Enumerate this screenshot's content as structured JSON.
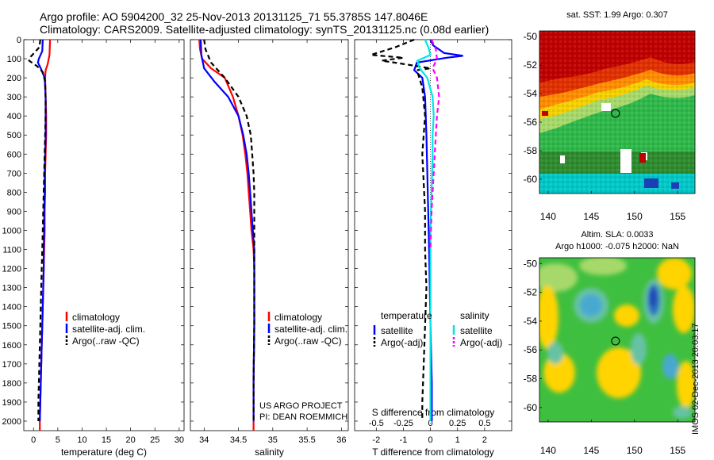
{
  "header": {
    "line1": "Argo profile: AO 5904200_32 25-Nov-2013 20131125_71 55.3785S 147.8046E",
    "line2": "Climatology: CARS2009. Satellite-adjusted climatology: synTS_20131125.nc (0.08d earlier)"
  },
  "credit": {
    "line1": "US ARGO PROJECT",
    "line2": "PI: DEAN ROEMMICH"
  },
  "side_label": "IMOS 02-Dec-2013 20:03:17",
  "colors": {
    "climatology": "#ff0000",
    "satellite": "#0000ff",
    "argo": "#000000",
    "sal_satellite": "#00e5e5",
    "sal_argo": "#ff00ff"
  },
  "chart_data": [
    {
      "type": "line",
      "id": "temperature",
      "xlabel": "temperature (deg C)",
      "ylabel": "",
      "xlim": [
        -2,
        31
      ],
      "ylim": [
        2050,
        0
      ],
      "xticks": [
        0,
        5,
        10,
        15,
        20,
        25,
        30
      ],
      "yticks": [
        0,
        100,
        200,
        300,
        400,
        500,
        600,
        700,
        800,
        900,
        1000,
        1100,
        1200,
        1300,
        1400,
        1500,
        1600,
        1700,
        1800,
        1900,
        2000
      ],
      "legend": {
        "placement": "lower-center",
        "items": [
          "climatology",
          "satellite-adj. clim.",
          "Argo(..raw -QC)"
        ]
      },
      "series": [
        {
          "name": "climatology",
          "color": "#ff0000",
          "dash": "",
          "points": [
            [
              3.4,
              0
            ],
            [
              3.3,
              80
            ],
            [
              2.9,
              130
            ],
            [
              2.5,
              160
            ],
            [
              2.4,
              200
            ],
            [
              2.5,
              300
            ],
            [
              2.6,
              400
            ],
            [
              2.6,
              500
            ],
            [
              2.5,
              600
            ],
            [
              2.4,
              700
            ],
            [
              2.4,
              800
            ],
            [
              2.3,
              900
            ],
            [
              2.3,
              1000
            ],
            [
              2.2,
              1100
            ],
            [
              2.1,
              1200
            ],
            [
              2.0,
              1300
            ],
            [
              1.9,
              1400
            ],
            [
              1.8,
              1500
            ],
            [
              1.7,
              1600
            ],
            [
              1.6,
              1700
            ],
            [
              1.5,
              1800
            ],
            [
              1.4,
              1900
            ],
            [
              1.3,
              2000
            ],
            [
              1.3,
              2050
            ]
          ]
        },
        {
          "name": "satellite-adj. clim.",
          "color": "#0000ff",
          "dash": "",
          "points": [
            [
              1.9,
              0
            ],
            [
              1.8,
              60
            ],
            [
              1.1,
              100
            ],
            [
              0.9,
              120
            ],
            [
              1.5,
              150
            ],
            [
              2.3,
              200
            ],
            [
              2.5,
              300
            ],
            [
              2.5,
              400
            ],
            [
              2.5,
              500
            ],
            [
              2.4,
              600
            ],
            [
              2.3,
              700
            ],
            [
              2.3,
              800
            ],
            [
              2.2,
              900
            ],
            [
              2.2,
              1000
            ],
            [
              2.1,
              1100
            ],
            [
              2.1,
              1200
            ],
            [
              2.0,
              1300
            ],
            [
              1.9,
              1400
            ],
            [
              1.8,
              1500
            ],
            [
              1.7,
              1600
            ],
            [
              1.6,
              1700
            ],
            [
              1.5,
              1800
            ],
            [
              1.4,
              1900
            ],
            [
              1.3,
              2000
            ]
          ]
        },
        {
          "name": "Argo(..raw -QC)",
          "color": "#000000",
          "dash": "6,4",
          "points": [
            [
              1.4,
              0
            ],
            [
              1.2,
              40
            ],
            [
              -0.6,
              90
            ],
            [
              -0.9,
              110
            ],
            [
              0.8,
              140
            ],
            [
              1.9,
              170
            ],
            [
              2.4,
              220
            ],
            [
              2.5,
              300
            ],
            [
              2.5,
              400
            ],
            [
              2.4,
              500
            ],
            [
              2.3,
              600
            ],
            [
              2.2,
              700
            ],
            [
              2.1,
              800
            ],
            [
              2.0,
              900
            ],
            [
              1.9,
              1000
            ],
            [
              1.8,
              1100
            ],
            [
              1.7,
              1200
            ],
            [
              1.6,
              1300
            ],
            [
              1.5,
              1400
            ],
            [
              1.4,
              1500
            ],
            [
              1.3,
              1600
            ],
            [
              1.2,
              1700
            ],
            [
              1.1,
              1800
            ],
            [
              1.0,
              1900
            ],
            [
              1.0,
              2000
            ]
          ]
        }
      ]
    },
    {
      "type": "line",
      "id": "salinity",
      "xlabel": "salinity",
      "xlim": [
        33.8,
        36.1
      ],
      "ylim": [
        2050,
        0
      ],
      "xticks": [
        34,
        34.5,
        35,
        35.5,
        36
      ],
      "xticklabels": [
        "34",
        "34.5",
        "35",
        "35.5",
        "36"
      ],
      "legend": {
        "placement": "lower-right",
        "items": [
          "climatology",
          "satellite-adj. clim.",
          "Argo(..raw -QC)"
        ]
      },
      "series": [
        {
          "name": "climatology",
          "color": "#ff0000",
          "dash": "",
          "points": [
            [
              33.93,
              0
            ],
            [
              33.94,
              50
            ],
            [
              33.97,
              100
            ],
            [
              34.1,
              150
            ],
            [
              34.3,
              200
            ],
            [
              34.42,
              300
            ],
            [
              34.5,
              400
            ],
            [
              34.56,
              500
            ],
            [
              34.6,
              600
            ],
            [
              34.63,
              700
            ],
            [
              34.65,
              800
            ],
            [
              34.67,
              900
            ],
            [
              34.69,
              1000
            ],
            [
              34.72,
              1100
            ],
            [
              34.73,
              1200
            ],
            [
              34.73,
              1500
            ],
            [
              34.72,
              1800
            ],
            [
              34.72,
              2050
            ]
          ]
        },
        {
          "name": "satellite-adj. clim.",
          "color": "#0000ff",
          "dash": "",
          "points": [
            [
              33.95,
              0
            ],
            [
              33.96,
              80
            ],
            [
              34.0,
              150
            ],
            [
              34.15,
              220
            ],
            [
              34.35,
              300
            ],
            [
              34.5,
              400
            ],
            [
              34.57,
              500
            ],
            [
              34.62,
              600
            ],
            [
              34.65,
              700
            ],
            [
              34.67,
              800
            ],
            [
              34.69,
              900
            ],
            [
              34.71,
              1000
            ],
            [
              34.73,
              1100
            ],
            [
              34.73,
              1200
            ],
            [
              34.73,
              1500
            ],
            [
              34.72,
              1800
            ],
            [
              34.72,
              2000
            ]
          ]
        },
        {
          "name": "Argo(..raw -QC)",
          "color": "#000000",
          "dash": "6,4",
          "points": [
            [
              34.0,
              0
            ],
            [
              34.02,
              50
            ],
            [
              34.1,
              120
            ],
            [
              34.3,
              200
            ],
            [
              34.5,
              300
            ],
            [
              34.62,
              400
            ],
            [
              34.68,
              500
            ],
            [
              34.7,
              600
            ],
            [
              34.72,
              700
            ],
            [
              34.73,
              800
            ],
            [
              34.73,
              900
            ],
            [
              34.73,
              1000
            ],
            [
              34.73,
              1500
            ],
            [
              34.72,
              1800
            ],
            [
              34.72,
              2000
            ]
          ]
        }
      ]
    },
    {
      "type": "line",
      "id": "differences",
      "xlabel": "T difference from climatology",
      "xlabel2": "S difference from climatology",
      "xlim": [
        -2.8,
        3.0
      ],
      "ylim": [
        2050,
        0
      ],
      "xticks": [
        -2,
        -1,
        0,
        1,
        2
      ],
      "xticks_top": [
        -0.5,
        -0.25,
        0,
        0.25,
        0.5
      ],
      "xticklabels_top": [
        "-0.5",
        "-0.25",
        "0",
        "0.25",
        "0.5"
      ],
      "legend": {
        "placement": "lower-center",
        "groups": [
          {
            "title": "temperature",
            "items": [
              "satellite",
              "Argo(-adj)"
            ]
          },
          {
            "title": "salinity",
            "items": [
              "satellite",
              "Argo(-adj)"
            ]
          }
        ]
      },
      "series": [
        {
          "name": "temperature satellite",
          "color": "#0000ff",
          "dash": "",
          "points": [
            [
              0.0,
              0
            ],
            [
              0.1,
              30
            ],
            [
              0.5,
              70
            ],
            [
              1.2,
              85
            ],
            [
              0.6,
              95
            ],
            [
              -0.5,
              120
            ],
            [
              -0.6,
              160
            ],
            [
              -0.3,
              200
            ],
            [
              -0.2,
              300
            ],
            [
              -0.15,
              500
            ],
            [
              -0.1,
              800
            ],
            [
              -0.05,
              1100
            ],
            [
              0.0,
              1500
            ],
            [
              0.05,
              1800
            ],
            [
              0.05,
              2000
            ]
          ]
        },
        {
          "name": "temperature Argo(-adj)",
          "color": "#000000",
          "dash": "6,4",
          "points": [
            [
              -0.6,
              0
            ],
            [
              -1.3,
              40
            ],
            [
              -2.2,
              80
            ],
            [
              -1.0,
              95
            ],
            [
              -1.8,
              110
            ],
            [
              -1.1,
              125
            ],
            [
              0.0,
              150
            ],
            [
              -0.5,
              160
            ],
            [
              -0.3,
              250
            ],
            [
              -0.2,
              400
            ],
            [
              -0.3,
              600
            ],
            [
              -0.2,
              900
            ],
            [
              -0.2,
              1100
            ],
            [
              -0.15,
              1300
            ],
            [
              -0.2,
              1500
            ],
            [
              -0.25,
              1700
            ],
            [
              -0.3,
              1900
            ],
            [
              -0.3,
              2000
            ]
          ]
        },
        {
          "name": "salinity satellite",
          "color": "#00e5e5",
          "dash": "",
          "points": [
            [
              -0.05,
              0
            ],
            [
              -0.02,
              40
            ],
            [
              0.0,
              80
            ],
            [
              -0.12,
              110
            ],
            [
              -0.1,
              150
            ],
            [
              -0.03,
              200
            ],
            [
              0.02,
              300
            ],
            [
              0.03,
              400
            ],
            [
              0.02,
              500
            ],
            [
              0.02,
              600
            ],
            [
              0.01,
              800
            ],
            [
              0.0,
              1000
            ],
            [
              0.0,
              1200
            ],
            [
              0.0,
              1500
            ],
            [
              0.0,
              2000
            ]
          ]
        },
        {
          "name": "salinity Argo(-adj)",
          "color": "#ff00ff",
          "dash": "6,4",
          "points": [
            [
              0.01,
              0
            ],
            [
              0.05,
              50
            ],
            [
              0.06,
              100
            ],
            [
              0.02,
              150
            ],
            [
              0.06,
              200
            ],
            [
              0.08,
              300
            ],
            [
              0.06,
              400
            ],
            [
              0.05,
              500
            ],
            [
              0.04,
              600
            ],
            [
              0.03,
              700
            ],
            [
              0.02,
              800
            ],
            [
              0.01,
              900
            ],
            [
              0.005,
              1000
            ],
            [
              0.0,
              1100
            ]
          ]
        }
      ]
    },
    {
      "type": "heatmap",
      "id": "sst_map",
      "title": "sat. SST: 1.99 Argo: 0.307",
      "xlim": [
        139,
        157
      ],
      "ylim": [
        -61,
        -49.6
      ],
      "xticks": [
        140,
        145,
        150,
        155
      ],
      "yticks": [
        -50,
        -52,
        -54,
        -56,
        -58,
        -60
      ],
      "argo_position": [
        147.8,
        -55.38
      ]
    },
    {
      "type": "heatmap",
      "id": "sla_map",
      "title": "Altim. SLA: 0.0033",
      "subtitle": "Argo h1000: -0.075 h2000: NaN",
      "xlim": [
        139,
        157
      ],
      "ylim": [
        -61,
        -49.6
      ],
      "xticks": [
        140,
        145,
        150,
        155
      ],
      "yticks": [
        -50,
        -52,
        -54,
        -56,
        -58,
        -60
      ],
      "argo_position": [
        147.8,
        -55.38
      ]
    }
  ]
}
